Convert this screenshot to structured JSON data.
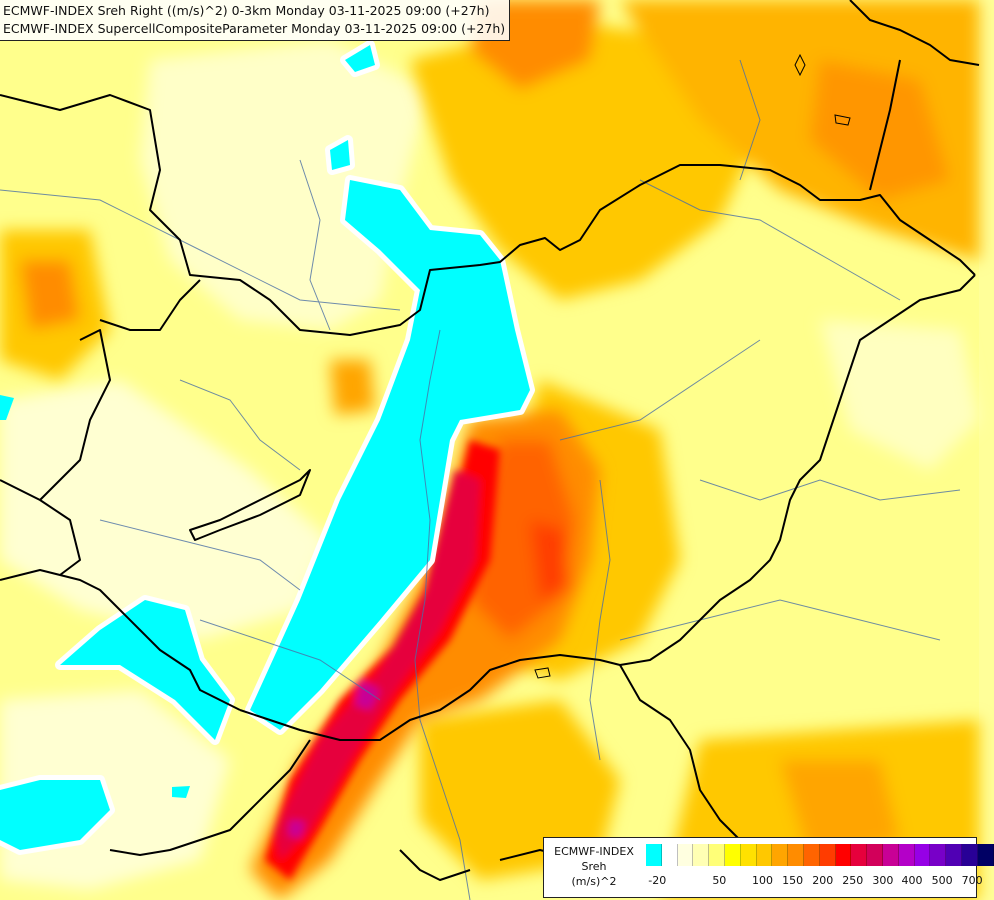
{
  "titles": [
    "ECMWF-INDEX Sreh Right ((m/s)^2) 0-3km Monday 03-11-2025 09:00 (+27h)",
    "ECMWF-INDEX SupercellCompositeParameter Monday 03-11-2025 09:00 (+27h)"
  ],
  "legend": {
    "model": "ECMWF-INDEX",
    "variable": "Sreh",
    "unit": "(m/s)^2",
    "colors": [
      "#00ffff",
      "#ffffff",
      "#ffffe0",
      "#ffffb4",
      "#ffff78",
      "#ffff00",
      "#ffe100",
      "#ffc800",
      "#ffa500",
      "#ff8c00",
      "#ff6400",
      "#ff3c00",
      "#ff0000",
      "#e6003c",
      "#d2005a",
      "#c80096",
      "#b400c8",
      "#9600e6",
      "#7800c8",
      "#5000b4",
      "#280096",
      "#000064"
    ],
    "tick_labels": [
      "-20",
      "50",
      "100",
      "150",
      "200",
      "250",
      "300",
      "400",
      "500",
      "700"
    ]
  },
  "colors": {
    "background_field": "#ffff99",
    "negative_region": "#00ffff",
    "max_region": "#e6003c",
    "border_lines": "#000000",
    "rivers": "#4a6fa5"
  }
}
